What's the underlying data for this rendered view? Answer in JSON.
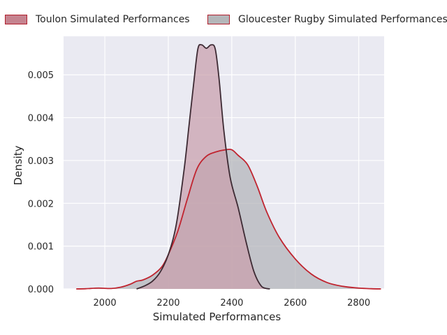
{
  "chart_data": {
    "type": "area",
    "title": "",
    "xlabel": "Simulated Performances",
    "ylabel": "Density",
    "xlim": [
      1870,
      2880
    ],
    "ylim": [
      0,
      0.0059
    ],
    "grid": true,
    "legend_position": "top",
    "xticks": [
      "2000",
      "2200",
      "2400",
      "2600",
      "2800"
    ],
    "yticks": [
      "0.000",
      "0.001",
      "0.002",
      "0.003",
      "0.004",
      "0.005"
    ],
    "series": [
      {
        "name": "Toulon Simulated Performances",
        "fill": "#c9a0ac",
        "edge": "#3d2a33",
        "x": [
          2100,
          2125,
          2150,
          2175,
          2200,
          2225,
          2250,
          2265,
          2280,
          2293,
          2305,
          2320,
          2335,
          2348,
          2360,
          2375,
          2395,
          2420,
          2445,
          2470,
          2495,
          2520
        ],
        "y": [
          0.0,
          7e-05,
          0.00018,
          0.0004,
          0.0008,
          0.0015,
          0.0028,
          0.0038,
          0.0048,
          0.0056,
          0.0057,
          0.00562,
          0.0057,
          0.0056,
          0.0049,
          0.0037,
          0.0026,
          0.0019,
          0.0011,
          0.0004,
          5e-05,
          0.0
        ]
      },
      {
        "name": "Gloucester Rugby Simulated Performances",
        "fill": "#b3b4b8",
        "edge": "#c0242f",
        "x": [
          1910,
          1940,
          1980,
          2020,
          2050,
          2080,
          2100,
          2120,
          2150,
          2180,
          2200,
          2230,
          2260,
          2290,
          2320,
          2350,
          2380,
          2400,
          2420,
          2450,
          2480,
          2510,
          2550,
          2600,
          2650,
          2700,
          2750,
          2800,
          2840,
          2870
        ],
        "y": [
          0.0,
          5e-06,
          2e-05,
          1e-05,
          4e-05,
          0.00011,
          0.00018,
          0.00021,
          0.00032,
          0.00052,
          0.0008,
          0.00135,
          0.0021,
          0.0028,
          0.0031,
          0.0032,
          0.00325,
          0.00325,
          0.00312,
          0.0029,
          0.0024,
          0.0018,
          0.0012,
          0.0007,
          0.00035,
          0.00015,
          6e-05,
          2e-05,
          5e-06,
          0.0
        ]
      }
    ]
  }
}
